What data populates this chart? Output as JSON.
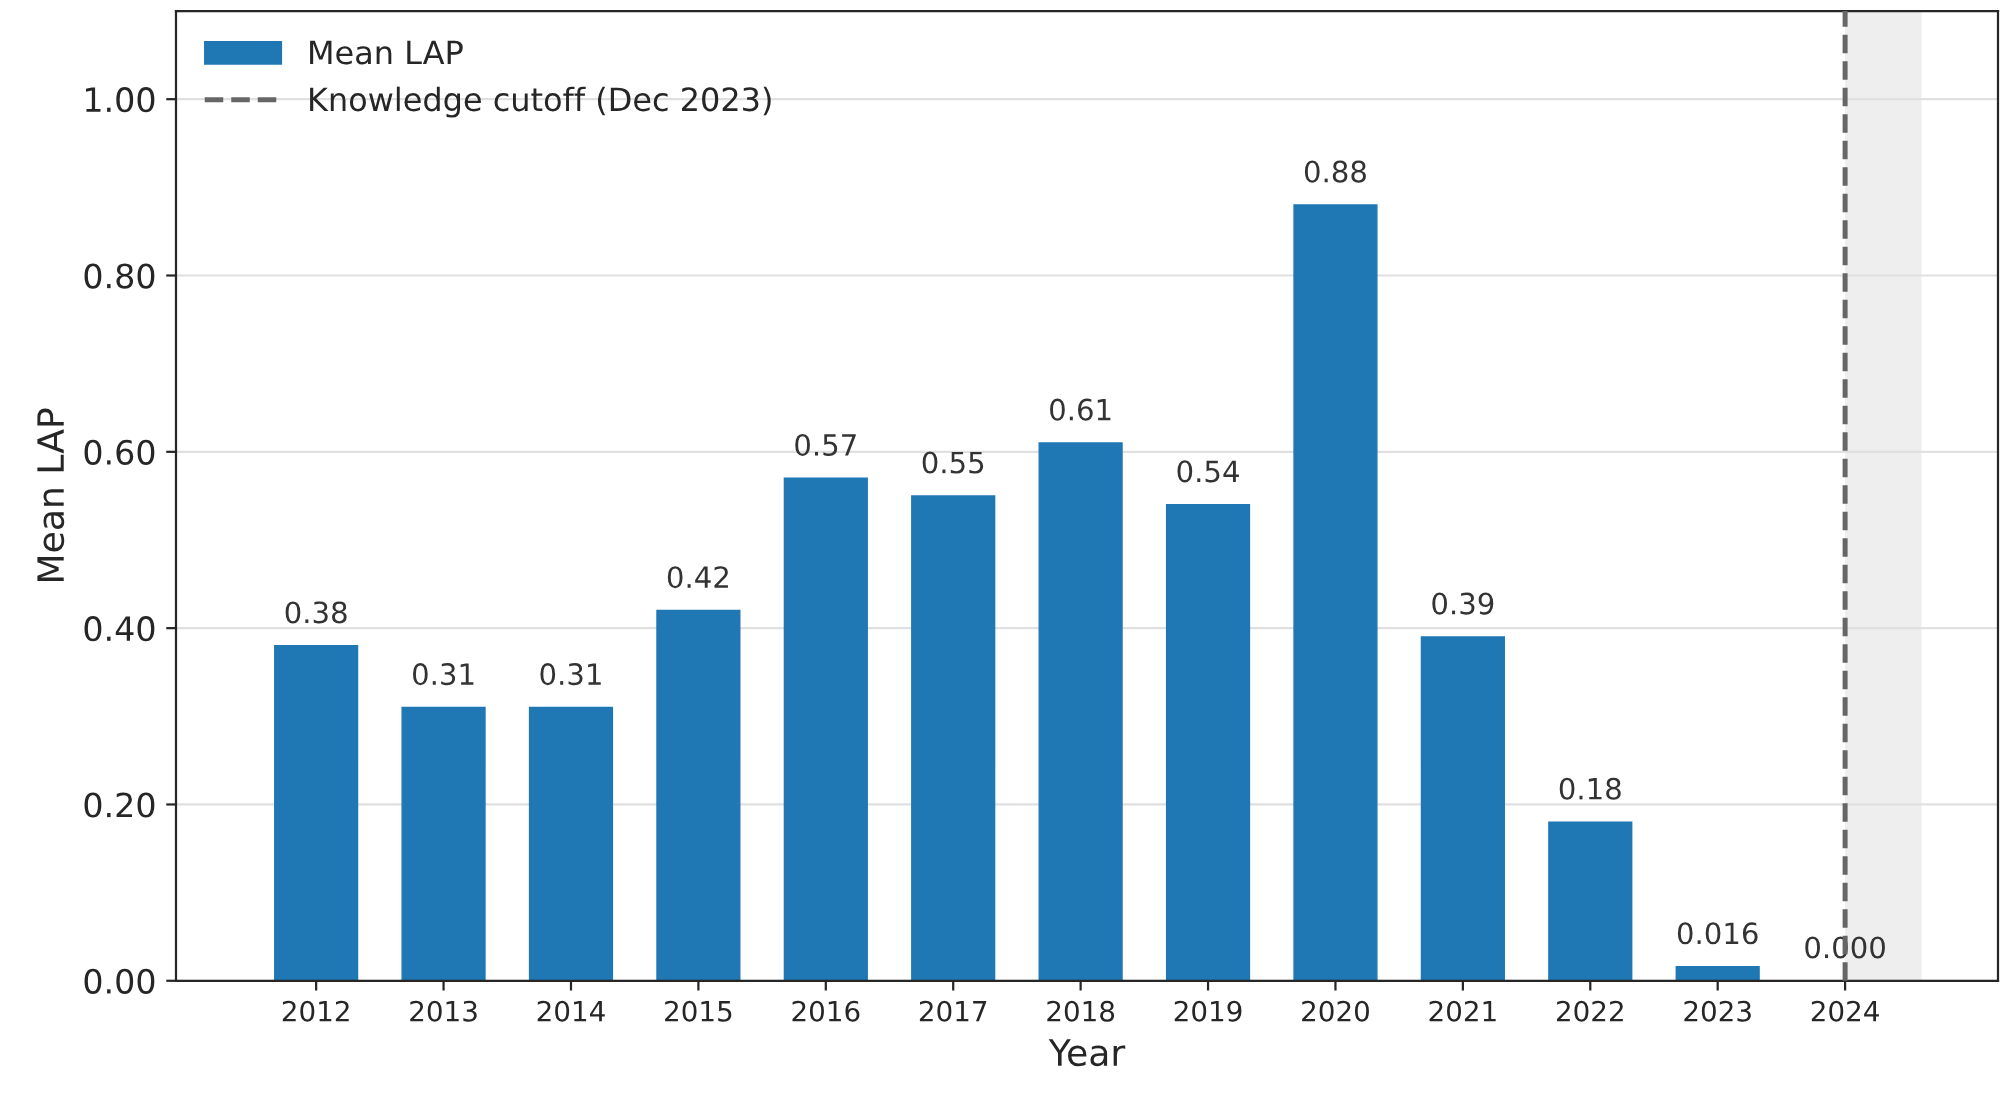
{
  "chart_data": {
    "type": "bar",
    "xlabel": "Year",
    "ylabel": "Mean LAP",
    "x": [
      2012,
      2013,
      2014,
      2015,
      2016,
      2017,
      2018,
      2019,
      2020,
      2021,
      2022,
      2023,
      2024
    ],
    "series": [
      {
        "name": "Mean LAP",
        "color": "#1f77b4",
        "values": [
          0.38,
          0.31,
          0.31,
          0.42,
          0.57,
          0.55,
          0.61,
          0.54,
          0.88,
          0.39,
          0.18,
          0.016,
          0.0
        ]
      },
      {
        "type": "line",
        "name": "Knowledge cutoff (Dec 2023)",
        "color": "#666666",
        "line_style": "dashed",
        "x": [
          2024,
          2024
        ],
        "values": [
          0,
          1.1
        ]
      }
    ],
    "value_labels": [
      "0.38",
      "0.31",
      "0.31",
      "0.42",
      "0.57",
      "0.55",
      "0.61",
      "0.54",
      "0.88",
      "0.39",
      "0.18",
      "0.016",
      "0.000"
    ],
    "xlim": [
      2010.9,
      2025.2
    ],
    "xticks": [
      2012,
      2013,
      2014,
      2015,
      2016,
      2017,
      2018,
      2019,
      2020,
      2021,
      2022,
      2023,
      2024
    ],
    "ylim": [
      0,
      1.1
    ],
    "yticks": [
      {
        "value": 0,
        "label": "0.00"
      },
      {
        "value": 0.2,
        "label": "0.20"
      },
      {
        "value": 0.4,
        "label": "0.40"
      },
      {
        "value": 0.6,
        "label": "0.60"
      },
      {
        "value": 0.8,
        "label": "0.80"
      },
      {
        "value": 1.0,
        "label": "1.00"
      }
    ],
    "bands": [
      {
        "axis": "x",
        "from": 2024,
        "to": 2024.6,
        "color": "#eeeeee"
      }
    ],
    "grid": "y",
    "legend": "top left"
  }
}
